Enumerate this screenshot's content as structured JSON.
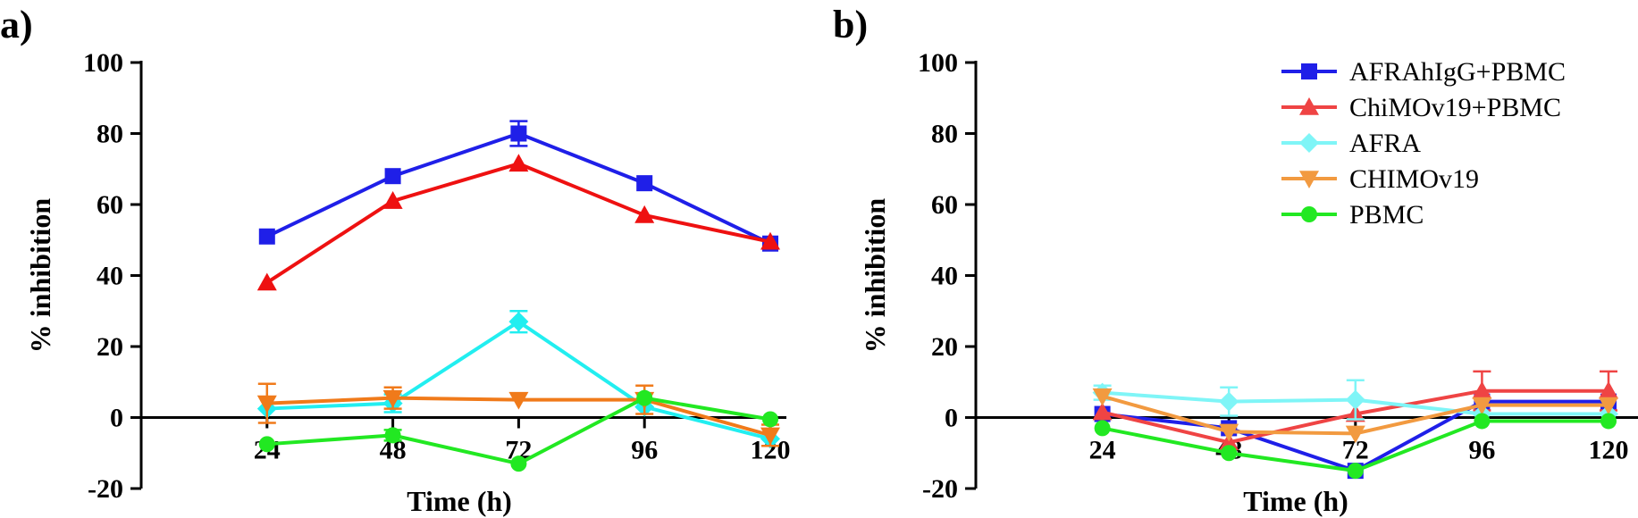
{
  "chart_data": [
    {
      "panel": "a)",
      "type": "line",
      "xlabel": "Time (h)",
      "ylabel": "% inhibition",
      "x": [
        24,
        48,
        72,
        96,
        120
      ],
      "xlim": [
        0,
        120
      ],
      "ylim": [
        -20,
        100
      ],
      "yticks": [
        -20,
        0,
        20,
        40,
        60,
        80,
        100
      ],
      "grid": false,
      "series": [
        {
          "name": "AFRAhIgG+PBMC",
          "color": "#1f1fe8",
          "marker": "square",
          "values": [
            51,
            68,
            80,
            66,
            49
          ],
          "err": [
            0,
            0,
            3.5,
            0,
            0
          ]
        },
        {
          "name": "ChiMOv19+PBMC",
          "color": "#ee1111",
          "marker": "triangle-up",
          "values": [
            38,
            61,
            71.5,
            57,
            49.5
          ],
          "err": [
            0,
            0,
            0,
            0,
            0
          ]
        },
        {
          "name": "AFRA",
          "color": "#22eef0",
          "marker": "diamond",
          "values": [
            2.5,
            4,
            27,
            3,
            -6
          ],
          "err": [
            0,
            2.5,
            3,
            0,
            0
          ]
        },
        {
          "name": "CHIMOv19",
          "color": "#f07a1a",
          "marker": "triangle-down",
          "values": [
            4,
            5.5,
            5,
            5,
            -5
          ],
          "err": [
            5.5,
            3,
            0,
            4,
            3
          ]
        },
        {
          "name": "PBMC",
          "color": "#22e822",
          "marker": "circle",
          "values": [
            -7.5,
            -5,
            -13,
            5.5,
            -0.5
          ],
          "err": [
            0,
            1.5,
            0,
            0,
            0
          ]
        }
      ]
    },
    {
      "panel": "b)",
      "type": "line",
      "xlabel": "Time (h)",
      "ylabel": "% inhibition",
      "x": [
        24,
        48,
        72,
        96,
        120
      ],
      "xlim": [
        0,
        120
      ],
      "ylim": [
        -20,
        100
      ],
      "yticks": [
        -20,
        0,
        20,
        40,
        60,
        80,
        100
      ],
      "grid": false,
      "legend": "top-right",
      "series": [
        {
          "name": "AFRAhIgG+PBMC",
          "color": "#1f1fe8",
          "marker": "square",
          "values": [
            1,
            -3,
            -15,
            4.5,
            4.5
          ],
          "err": [
            0,
            0,
            0,
            0,
            0
          ]
        },
        {
          "name": "ChiMOv19+PBMC",
          "color": "#ef4444",
          "marker": "triangle-up",
          "values": [
            1.5,
            -7,
            1,
            7.5,
            7.5
          ],
          "err": [
            0,
            0,
            0,
            5.5,
            5.5
          ]
        },
        {
          "name": "AFRA",
          "color": "#7ff5f7",
          "marker": "diamond",
          "values": [
            7,
            4.5,
            5,
            1,
            1
          ],
          "err": [
            2,
            4,
            5.5,
            0,
            0
          ]
        },
        {
          "name": "CHIMOv19",
          "color": "#f29a40",
          "marker": "triangle-down",
          "values": [
            6,
            -4,
            -4.5,
            3.5,
            3.5
          ],
          "err": [
            0,
            0,
            0,
            0,
            0
          ]
        },
        {
          "name": "PBMC",
          "color": "#22e822",
          "marker": "circle",
          "values": [
            -3,
            -10,
            -15,
            -1,
            -1
          ],
          "err": [
            0,
            0,
            0,
            0,
            0
          ]
        }
      ]
    }
  ]
}
